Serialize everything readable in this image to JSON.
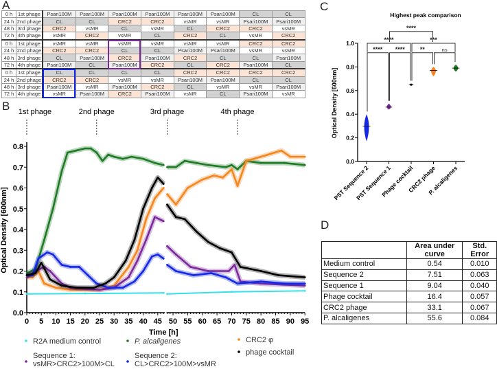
{
  "panels": {
    "a": "A",
    "b": "B",
    "c": "C",
    "d": "D"
  },
  "colors": {
    "cyan": "#35e0e8",
    "green": "#1e7a24",
    "orange": "#f5861f",
    "black": "#000000",
    "purple": "#7b2a9b",
    "blue": "#1428e6",
    "CL": "#d2d2d2",
    "CRC2": "#fbe3d6",
    "vsMR": "#ffffff",
    "Psari100M": "#f0f0f0"
  },
  "panel_a": {
    "times": [
      "0 h",
      "24 h",
      "48 h",
      "72 h"
    ],
    "phages": [
      "1st phage",
      "2nd phage",
      "3rd phage",
      "4th phage"
    ],
    "blocks": [
      [
        [
          "Psari100M",
          "Psari100M",
          "Psari100M",
          "Psari100M",
          "Psari100M",
          "Psari100M",
          "CL",
          "CL"
        ],
        [
          "CL",
          "CL",
          "CRC2",
          "CRC2",
          "vsMR",
          "vsMR",
          "Psari100M",
          "Psari100M"
        ],
        [
          "CRC2",
          "vsMR",
          "CL",
          "vsMR",
          "CL",
          "CRC2",
          "CRC2",
          "vsMR"
        ],
        [
          "vsMR",
          "CRC2",
          "vsMR",
          "CL",
          "CRC2",
          "CL",
          "vsMR",
          "CRC2"
        ]
      ],
      [
        [
          "vsMR",
          "vsMR",
          "vsMR",
          "vsMR",
          "vsMR",
          "vsMR",
          "CRC2",
          "CRC2"
        ],
        [
          "CRC2",
          "CRC2",
          "CL",
          "CL",
          "Psari100M",
          "Psari100M",
          "vsMR",
          "vsMR"
        ],
        [
          "CL",
          "Psari100M",
          "CRC2",
          "Psari100M",
          "CRC2",
          "CL",
          "CL",
          "Psari100M"
        ],
        [
          "Psari100M",
          "CL",
          "Psari100M",
          "CRC2",
          "CL",
          "CRC2",
          "Psari100M",
          "CL"
        ]
      ],
      [
        [
          "CL",
          "CL",
          "CL",
          "CL",
          "CRC2",
          "CRC2",
          "CRC2",
          "CRC2"
        ],
        [
          "CRC2",
          "CRC2",
          "vsMR",
          "vsMR",
          "Psari100M",
          "Psari100M",
          "CL",
          "CL"
        ],
        [
          "Psari100M",
          "vsMR",
          "Psari100M",
          "CRC2",
          "CL",
          "vsMR",
          "vsMR",
          "Psari100M"
        ],
        [
          "vsMR",
          "Psari100M",
          "CRC2",
          "Psari100M",
          "vsMR",
          "CL",
          "Psari100M",
          "vsMR"
        ]
      ]
    ],
    "highlights": [
      {
        "block": 2,
        "column": 3,
        "color": "#7b2a9b"
      },
      {
        "block": 3,
        "column": 1,
        "color": "#1428e6"
      }
    ]
  },
  "chart_data": [
    {
      "type": "line",
      "panel": "B",
      "xlabel": "Time [h]",
      "ylabel": "Optical  Density [600nm]",
      "xlim": [
        0,
        95
      ],
      "ylim": [
        0,
        0.8
      ],
      "axis_break": [
        47,
        48
      ],
      "xticks": [
        0,
        5,
        10,
        15,
        20,
        25,
        30,
        35,
        40,
        45,
        50,
        55,
        60,
        65,
        70,
        75,
        80,
        85,
        90,
        95
      ],
      "yticks": [
        "0.0",
        "0.1",
        "0.2",
        "0.3",
        "0.4",
        "0.5",
        "0.6",
        "0.7",
        "0.8"
      ],
      "phage_additions": [
        {
          "label": "1st phage",
          "x": 0
        },
        {
          "label": "2nd phage",
          "x": 24
        },
        {
          "label": "3rd phage",
          "x": 48
        },
        {
          "label": "4th phage",
          "x": 72
        }
      ],
      "series": [
        {
          "name": "R2A medium control",
          "color": "#35e0e8",
          "marker": "dot",
          "points": [
            [
              0,
              0.09
            ],
            [
              20,
              0.092
            ],
            [
              47,
              0.095
            ],
            [
              48,
              0.09
            ],
            [
              70,
              0.1
            ],
            [
              95,
              0.105
            ]
          ]
        },
        {
          "name": "P. alcaligenes",
          "color": "#1e7a24",
          "marker": "diamond",
          "points": [
            [
              0,
              0.19
            ],
            [
              3,
              0.21
            ],
            [
              6,
              0.35
            ],
            [
              9,
              0.5
            ],
            [
              12,
              0.68
            ],
            [
              14,
              0.77
            ],
            [
              17,
              0.78
            ],
            [
              20,
              0.79
            ],
            [
              22,
              0.79
            ],
            [
              24,
              0.77
            ],
            [
              26,
              0.73
            ],
            [
              28,
              0.76
            ],
            [
              30,
              0.75
            ],
            [
              33,
              0.74
            ],
            [
              36,
              0.75
            ],
            [
              40,
              0.74
            ],
            [
              44,
              0.72
            ],
            [
              47,
              0.71
            ],
            [
              48,
              0.7
            ],
            [
              51,
              0.7
            ],
            [
              54,
              0.73
            ],
            [
              58,
              0.72
            ],
            [
              62,
              0.71
            ],
            [
              68,
              0.7
            ],
            [
              70,
              0.71
            ],
            [
              72,
              0.69
            ],
            [
              75,
              0.73
            ],
            [
              80,
              0.72
            ],
            [
              88,
              0.72
            ],
            [
              95,
              0.71
            ]
          ]
        },
        {
          "name": "CRC2 φ",
          "color": "#f5861f",
          "marker": "square",
          "points": [
            [
              0,
              0.17
            ],
            [
              2,
              0.17
            ],
            [
              4,
              0.2
            ],
            [
              6,
              0.14
            ],
            [
              10,
              0.12
            ],
            [
              15,
              0.11
            ],
            [
              25,
              0.11
            ],
            [
              30,
              0.13
            ],
            [
              35,
              0.22
            ],
            [
              38,
              0.3
            ],
            [
              41,
              0.45
            ],
            [
              44,
              0.55
            ],
            [
              47,
              0.6
            ],
            [
              48,
              0.57
            ],
            [
              51,
              0.52
            ],
            [
              55,
              0.6
            ],
            [
              60,
              0.64
            ],
            [
              64,
              0.66
            ],
            [
              67,
              0.65
            ],
            [
              70,
              0.69
            ],
            [
              72,
              0.61
            ],
            [
              75,
              0.73
            ],
            [
              80,
              0.75
            ],
            [
              87,
              0.78
            ],
            [
              90,
              0.75
            ],
            [
              95,
              0.75
            ]
          ]
        },
        {
          "name": "Sequence 1: vsMR>CRC2>100M>CL",
          "color": "#7b2a9b",
          "marker": "dot",
          "points": [
            [
              0,
              0.17
            ],
            [
              3,
              0.2
            ],
            [
              6,
              0.22
            ],
            [
              8,
              0.2
            ],
            [
              12,
              0.14
            ],
            [
              15,
              0.12
            ],
            [
              25,
              0.11
            ],
            [
              30,
              0.12
            ],
            [
              35,
              0.17
            ],
            [
              38,
              0.25
            ],
            [
              41,
              0.35
            ],
            [
              44,
              0.46
            ],
            [
              47,
              0.44
            ],
            [
              48,
              0.32
            ],
            [
              51,
              0.28
            ],
            [
              56,
              0.22
            ],
            [
              62,
              0.2
            ],
            [
              69,
              0.2
            ],
            [
              71,
              0.23
            ],
            [
              73,
              0.15
            ],
            [
              80,
              0.14
            ],
            [
              95,
              0.13
            ]
          ]
        },
        {
          "name": "Sequence 2: CL>CRC2>100M>vsMR",
          "color": "#1428e6",
          "marker": "triangle-down",
          "points": [
            [
              0,
              0.18
            ],
            [
              2,
              0.18
            ],
            [
              4,
              0.26
            ],
            [
              7,
              0.29
            ],
            [
              9,
              0.28
            ],
            [
              12,
              0.23
            ],
            [
              15,
              0.22
            ],
            [
              18,
              0.22
            ],
            [
              21,
              0.18
            ],
            [
              24,
              0.14
            ],
            [
              28,
              0.12
            ],
            [
              33,
              0.12
            ],
            [
              37,
              0.15
            ],
            [
              40,
              0.2
            ],
            [
              43,
              0.27
            ],
            [
              45,
              0.28
            ],
            [
              47,
              0.26
            ],
            [
              48,
              0.23
            ],
            [
              51,
              0.2
            ],
            [
              57,
              0.18
            ],
            [
              63,
              0.19
            ],
            [
              68,
              0.17
            ],
            [
              72,
              0.14
            ],
            [
              80,
              0.15
            ],
            [
              88,
              0.14
            ],
            [
              95,
              0.14
            ]
          ]
        },
        {
          "name": "phage cocktail",
          "color": "#000000",
          "marker": "triangle",
          "points": [
            [
              0,
              0.18
            ],
            [
              3,
              0.19
            ],
            [
              5,
              0.24
            ],
            [
              8,
              0.16
            ],
            [
              12,
              0.13
            ],
            [
              17,
              0.12
            ],
            [
              23,
              0.12
            ],
            [
              27,
              0.14
            ],
            [
              30,
              0.17
            ],
            [
              34,
              0.25
            ],
            [
              37,
              0.35
            ],
            [
              40,
              0.5
            ],
            [
              43,
              0.6
            ],
            [
              45,
              0.65
            ],
            [
              47,
              0.62
            ],
            [
              48,
              0.52
            ],
            [
              51,
              0.46
            ],
            [
              54,
              0.45
            ],
            [
              58,
              0.39
            ],
            [
              62,
              0.34
            ],
            [
              66,
              0.31
            ],
            [
              70,
              0.29
            ],
            [
              73,
              0.22
            ],
            [
              80,
              0.2
            ],
            [
              86,
              0.18
            ],
            [
              95,
              0.17
            ]
          ]
        }
      ],
      "legend": [
        {
          "text": "R2A medium control",
          "series": 0
        },
        {
          "text": "P. alcaligenes",
          "series": 1,
          "italic": true
        },
        {
          "text": "CRC2 φ",
          "series": 2
        },
        {
          "text": "Sequence 1:",
          "text2": "vsMR>CRC2>100M>CL",
          "series": 3
        },
        {
          "text": "Sequence 2:",
          "text2": "CL>CRC2>100M>vsMR",
          "series": 4
        },
        {
          "text": "phage cocktail",
          "series": 5
        }
      ]
    },
    {
      "type": "violin",
      "panel": "C",
      "title": "Highest peak comparison",
      "ylabel": "Optical  Density [600nm]",
      "ylim": [
        0,
        1.0
      ],
      "yticks": [
        "0.0",
        "0.2",
        "0.4",
        "0.6",
        "0.8",
        "1.0"
      ],
      "categories": [
        "PST Sequence 2",
        "PST Sequence 1",
        "Phage cocktail",
        "CRC2 phage",
        "P. alcaligenes"
      ],
      "medians": [
        0.3,
        0.46,
        0.65,
        0.77,
        0.79
      ],
      "ranges": [
        [
          0.17,
          0.4
        ],
        [
          0.44,
          0.49
        ],
        [
          0.64,
          0.66
        ],
        [
          0.72,
          0.8
        ],
        [
          0.76,
          0.82
        ]
      ],
      "colors": [
        "#1428e6",
        "#7b2a9b",
        "#000000",
        "#f5861f",
        "#1e7a24"
      ],
      "significance": [
        {
          "from": 0,
          "to": 1,
          "label": "****",
          "level": 0
        },
        {
          "from": 1,
          "to": 2,
          "label": "****",
          "level": 0
        },
        {
          "from": 2,
          "to": 3,
          "label": "**",
          "level": 0
        },
        {
          "from": 3,
          "to": 4,
          "label": "ns",
          "level": 0
        },
        {
          "from": 0,
          "to": 2,
          "label": "****",
          "level": 1
        },
        {
          "from": 2,
          "to": 4,
          "label": "***",
          "level": 1
        },
        {
          "from": 1,
          "to": 3,
          "label": "****",
          "level": 2
        }
      ]
    }
  ],
  "panel_d": {
    "headers": [
      "",
      "Area under curve",
      "Std. Error"
    ],
    "rows": [
      [
        "Medium control",
        "0.54",
        "0.010"
      ],
      [
        "Sequence 2",
        "7.51",
        "0.063"
      ],
      [
        "Sequence 1",
        "9.04",
        "0.040"
      ],
      [
        "Phage cocktail",
        "16.4",
        "0.057"
      ],
      [
        "CRC2 phage",
        "33.1",
        "0.067"
      ],
      [
        "P. alcaligenes",
        "55.6",
        "0.084"
      ]
    ]
  }
}
